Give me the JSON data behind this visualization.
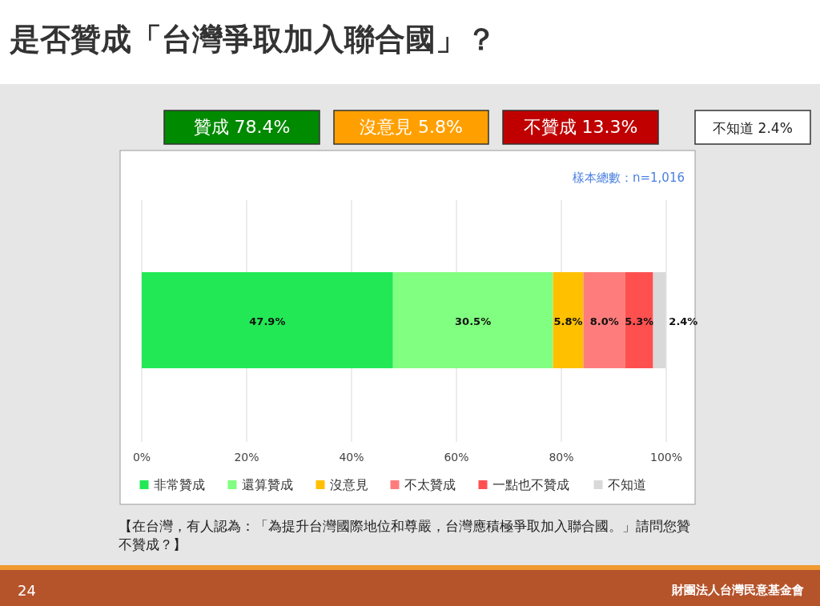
{
  "chart_data": {
    "type": "bar",
    "orientation": "horizontal",
    "stacked": true,
    "title": "是否贊成「台灣爭取加入聯合國」？",
    "categories": [
      null
    ],
    "series": [
      {
        "name": "非常贊成",
        "color": "#22e855",
        "values": [
          47.9
        ],
        "value_labels": [
          "47.9%"
        ]
      },
      {
        "name": "還算贊成",
        "color": "#80ff80",
        "values": [
          30.5
        ],
        "value_labels": [
          "30.5%"
        ]
      },
      {
        "name": "沒意見",
        "color": "#ffc000",
        "values": [
          5.8
        ],
        "value_labels": [
          "5.8%"
        ]
      },
      {
        "name": "不太贊成",
        "color": "#ff7c7c",
        "values": [
          8.0
        ],
        "value_labels": [
          "8.0%"
        ]
      },
      {
        "name": "一點也不贊成",
        "color": "#ff5050",
        "values": [
          5.3
        ],
        "value_labels": [
          "5.3%"
        ]
      },
      {
        "name": "不知道",
        "color": "#d9d9d9",
        "values": [
          2.4
        ],
        "value_labels": [
          "2.4%"
        ]
      }
    ],
    "xlim": [
      0,
      100
    ],
    "xticks": [
      {
        "value": 0,
        "label": "0%"
      },
      {
        "value": 20,
        "label": "20%"
      },
      {
        "value": 40,
        "label": "40%"
      },
      {
        "value": 60,
        "label": "60%"
      },
      {
        "value": 80,
        "label": "80%"
      },
      {
        "value": 100,
        "label": "100%"
      }
    ],
    "grid": "x",
    "legend": "bottom",
    "annotations": [
      "贊成 78.4%",
      "沒意見 5.8%",
      "不贊成 13.3%",
      "不知道 2.4%",
      "樣本總數：n=1,016",
      "【在台灣，有人認為：「為提升台灣國際地位和尊嚴，台灣應積極爭取加入聯合國。」請問您贊不贊成？】",
      "24",
      "財團法人台灣民意基金會"
    ]
  }
}
